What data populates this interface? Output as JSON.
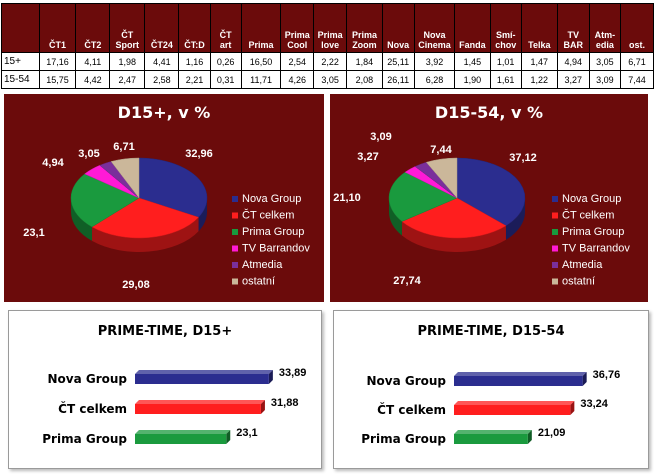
{
  "table": {
    "headers": [
      [
        "ČT1"
      ],
      [
        "ČT2"
      ],
      [
        "ČT",
        "Sport"
      ],
      [
        "ČT24"
      ],
      [
        "ČT:D"
      ],
      [
        "ČT",
        "art"
      ],
      [
        "Prima"
      ],
      [
        "Prima",
        "Cool"
      ],
      [
        "Prima",
        "love"
      ],
      [
        "Prima",
        "Zoom"
      ],
      [
        "Nova"
      ],
      [
        "Nova",
        "Cinema"
      ],
      [
        "Fanda"
      ],
      [
        "Smí-",
        "chov"
      ],
      [
        "Telka"
      ],
      [
        "TV",
        "BAR"
      ],
      [
        "Atm-",
        "edia"
      ],
      [
        "ost."
      ]
    ],
    "rows": [
      {
        "label": "15+",
        "values": [
          "17,16",
          "4,11",
          "1,98",
          "4,41",
          "1,16",
          "0,26",
          "16,50",
          "2,54",
          "2,22",
          "1,84",
          "25,11",
          "3,92",
          "1,45",
          "1,01",
          "1,47",
          "4,94",
          "3,05",
          "6,71"
        ]
      },
      {
        "label": "15-54",
        "values": [
          "15,75",
          "4,42",
          "2,47",
          "2,58",
          "2,21",
          "0,31",
          "11,71",
          "4,26",
          "3,05",
          "2,08",
          "26,11",
          "6,28",
          "1,90",
          "1,61",
          "1,22",
          "3,27",
          "3,09",
          "7,44"
        ]
      }
    ]
  },
  "chart_data": [
    {
      "type": "pie",
      "title": "D15+, v %",
      "labels": [
        "Nova Group",
        "ČT celkem",
        "Prima Group",
        "TV Barrandov",
        "Atmedia",
        "ostatní"
      ],
      "values": [
        32.96,
        29.08,
        23.1,
        4.94,
        3.05,
        6.71
      ],
      "value_labels": [
        "32,96",
        "29,08",
        "23,1",
        "4,94",
        "3,05",
        "6,71"
      ],
      "colors": [
        "#2b2d8f",
        "#ff1e1e",
        "#1a9a3e",
        "#ff1ad6",
        "#7a2f9b",
        "#cbb79a"
      ],
      "legend": "right"
    },
    {
      "type": "pie",
      "title": "D15-54, v %",
      "labels": [
        "Nova Group",
        "ČT celkem",
        "Prima Group",
        "TV Barrandov",
        "Atmedia",
        "ostatní"
      ],
      "values": [
        37.12,
        27.74,
        21.1,
        3.27,
        3.09,
        7.44
      ],
      "value_labels": [
        "37,12",
        "27,74",
        "21,10",
        "3,27",
        "3,09",
        "7,44"
      ],
      "colors": [
        "#2b2d8f",
        "#ff1e1e",
        "#1a9a3e",
        "#ff1ad6",
        "#7a2f9b",
        "#cbb79a"
      ],
      "legend": "right"
    },
    {
      "type": "bar",
      "orientation": "horizontal",
      "title": "PRIME-TIME, D15+",
      "categories": [
        "Nova Group",
        "ČT celkem",
        "Prima Group"
      ],
      "values": [
        33.89,
        31.88,
        23.1
      ],
      "value_labels": [
        "33,89",
        "31,88",
        "23,1"
      ],
      "colors": [
        "#2b2d8f",
        "#ff1e1e",
        "#1a9a3e"
      ]
    },
    {
      "type": "bar",
      "orientation": "horizontal",
      "title": "PRIME-TIME, D15-54",
      "categories": [
        "Nova Group",
        "ČT celkem",
        "Prima Group"
      ],
      "values": [
        36.76,
        33.24,
        21.09
      ],
      "value_labels": [
        "36,76",
        "33,24",
        "21,09"
      ],
      "colors": [
        "#2b2d8f",
        "#ff1e1e",
        "#1a9a3e"
      ]
    }
  ]
}
